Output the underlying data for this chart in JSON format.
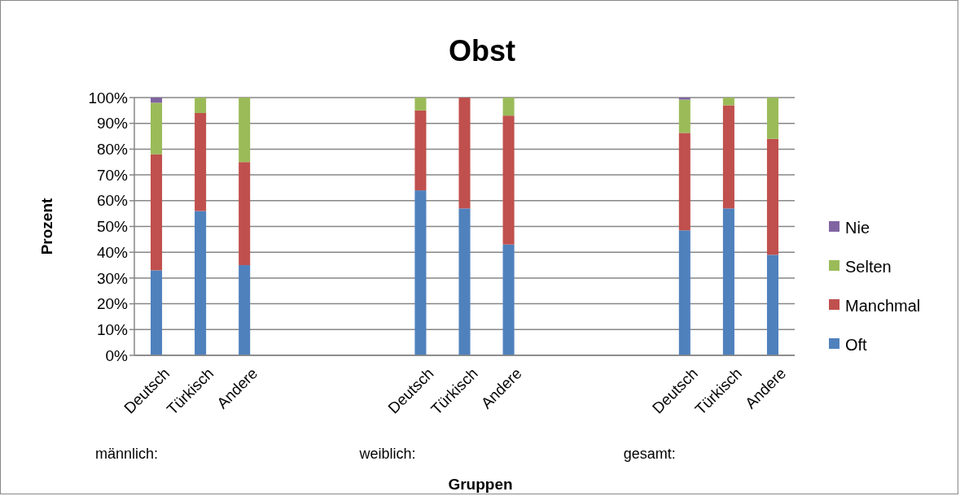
{
  "chart_data": {
    "type": "bar",
    "title": "Obst",
    "xlabel": "Gruppen",
    "ylabel": "Prozent",
    "categories": [
      "Deutsch",
      "Türkisch",
      "Andere",
      null,
      null,
      null,
      "Deutsch",
      "Türkisch",
      "Andere",
      null,
      null,
      null,
      "Deutsch",
      "Türkisch",
      "Andere"
    ],
    "stacked": true,
    "series": [
      {
        "name": "Oft",
        "color": "#4f81bd",
        "values": [
          33,
          56,
          35,
          null,
          null,
          null,
          64,
          57,
          43,
          null,
          null,
          null,
          48.5,
          57,
          39
        ]
      },
      {
        "name": "Manchmal",
        "color": "#c0504d",
        "values": [
          45,
          38,
          40,
          null,
          null,
          null,
          31,
          43,
          50,
          null,
          null,
          null,
          37.8,
          40,
          45
        ]
      },
      {
        "name": "Selten",
        "color": "#9bbb59",
        "values": [
          20,
          6,
          25,
          null,
          null,
          null,
          5,
          0,
          7,
          null,
          null,
          null,
          12.9,
          3,
          16
        ]
      },
      {
        "name": "Nie",
        "color": "#8064a2",
        "values": [
          2,
          0,
          0,
          null,
          null,
          null,
          0,
          0,
          0,
          null,
          null,
          null,
          0.8,
          0,
          0
        ]
      }
    ],
    "ylim": [
      0,
      100
    ],
    "yticks": [
      {
        "value": 0,
        "label": "0%"
      },
      {
        "value": 10,
        "label": "10%"
      },
      {
        "value": 20,
        "label": "20%"
      },
      {
        "value": 30,
        "label": "30%"
      },
      {
        "value": 40,
        "label": "40%"
      },
      {
        "value": 50,
        "label": "50%"
      },
      {
        "value": 60,
        "label": "60%"
      },
      {
        "value": 70,
        "label": "70%"
      },
      {
        "value": 80,
        "label": "80%"
      },
      {
        "value": 90,
        "label": "90%"
      },
      {
        "value": 100,
        "label": "100%"
      }
    ],
    "grid": "y",
    "legend": "right",
    "annotations": [
      "männlich:",
      "weiblich:",
      "gesamt:"
    ]
  }
}
